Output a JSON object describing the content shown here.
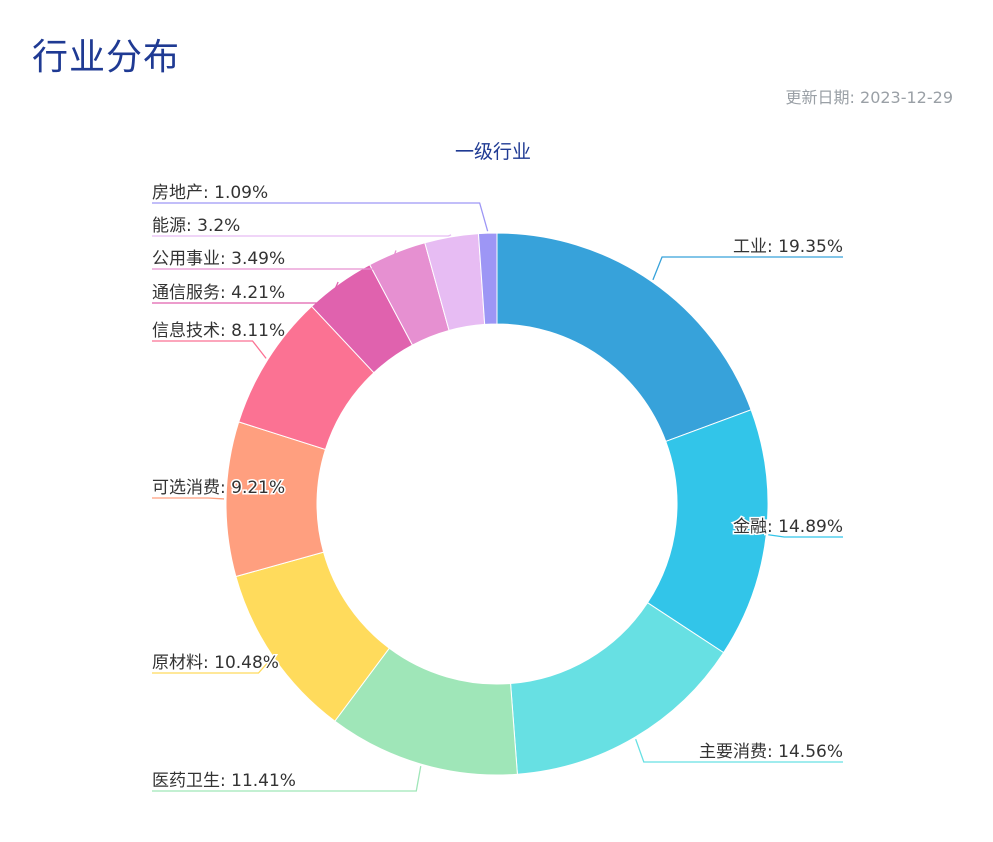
{
  "page": {
    "title": "行业分布",
    "update_date": "更新日期: 2023-12-29"
  },
  "chart_data": {
    "type": "pie",
    "title": "一级行业",
    "categories": [
      "工业",
      "金融",
      "主要消费",
      "医药卫生",
      "原材料",
      "可选消费",
      "信息技术",
      "通信服务",
      "公用事业",
      "能源",
      "房地产"
    ],
    "values": [
      19.35,
      14.89,
      14.56,
      11.41,
      10.48,
      9.21,
      8.11,
      4.21,
      3.49,
      3.2,
      1.09
    ],
    "labels": [
      "工业: 19.35%",
      "金融: 14.89%",
      "主要消费: 14.56%",
      "医药卫生: 11.41%",
      "原材料: 10.48%",
      "可选消费: 9.21%",
      "信息技术: 8.11%",
      "通信服务: 4.21%",
      "公用事业: 3.49%",
      "能源: 3.2%",
      "房地产: 1.09%"
    ],
    "colors": [
      "#37a2da",
      "#32c5e9",
      "#67e0e3",
      "#9fe6b8",
      "#ffdb5c",
      "#ff9f7f",
      "#fb7293",
      "#e062ae",
      "#e690d1",
      "#e7bcf3",
      "#9d96f5"
    ],
    "unit": "%"
  }
}
